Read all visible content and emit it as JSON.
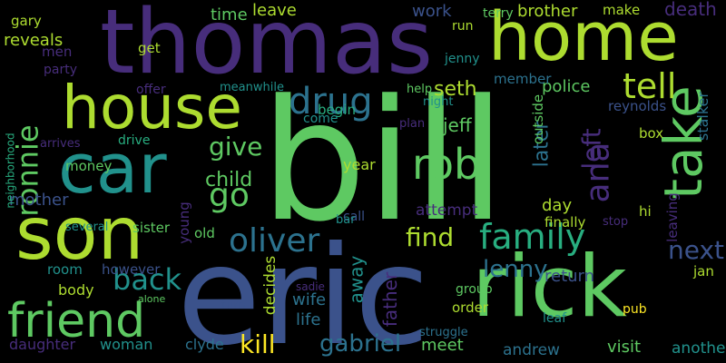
{
  "background": "#000000",
  "palette": [
    "#440154",
    "#472d7b",
    "#3b528b",
    "#2c728e",
    "#21918c",
    "#28ae80",
    "#5ec962",
    "#addc30",
    "#fde725"
  ],
  "words": [
    "bill",
    "eric",
    "thomas",
    "home",
    "son",
    "car",
    "house",
    "rick",
    "friend",
    "take",
    "drug",
    "rob",
    "tell",
    "family",
    "oliver",
    "ana",
    "back",
    "go",
    "find",
    "gabriel",
    "ronnie",
    "kill",
    "lenny",
    "give",
    "next",
    "left",
    "seth",
    "later",
    "child",
    "death",
    "reveals",
    "brother",
    "leave",
    "jeff",
    "time",
    "police",
    "return",
    "mother",
    "day",
    "attempt",
    "work",
    "reynolds",
    "father",
    "stalker",
    "away",
    "decides",
    "life",
    "wife",
    "meet",
    "year",
    "visit",
    "andrew",
    "another",
    "woman",
    "daughter",
    "clyde",
    "body",
    "room",
    "young",
    "outside",
    "jan",
    "begin",
    "leaving",
    "member",
    "gary",
    "men",
    "get",
    "however",
    "sister",
    "money",
    "old",
    "hi",
    "box",
    "finally",
    "order",
    "group",
    "terry",
    "make",
    "run",
    "jenny",
    "party",
    "come",
    "drive",
    "offer",
    "meanwhile",
    "plan",
    "night",
    "help",
    "leaf",
    "pub",
    "call",
    "bar",
    "several",
    "neighborhood",
    "arrives",
    "struggle",
    "stop",
    "sadie",
    "turn",
    "alone"
  ]
}
